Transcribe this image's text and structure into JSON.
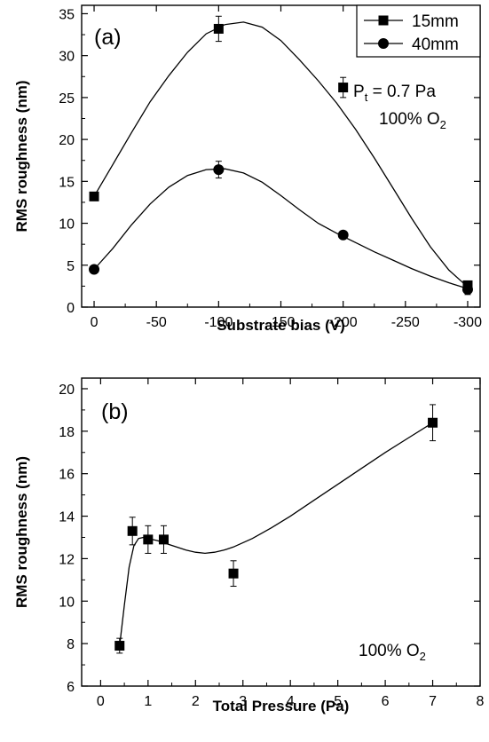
{
  "chart_data": [
    {
      "type": "line",
      "panel_label": "(a)",
      "xlabel": "Substrate bias (V)",
      "ylabel": "RMS roughness (nm)",
      "xlim": [
        10,
        -310
      ],
      "ylim": [
        0,
        36
      ],
      "x_ticks": [
        0,
        -50,
        -100,
        -150,
        -200,
        -250,
        -300
      ],
      "x_tick_labels": [
        "0",
        "-50",
        "-100",
        "-150",
        "-200",
        "-250",
        "-300"
      ],
      "y_ticks": [
        0,
        5,
        10,
        15,
        20,
        25,
        30,
        35
      ],
      "y_tick_labels": [
        "0",
        "5",
        "10",
        "15",
        "20",
        "25",
        "30",
        "35"
      ],
      "grid": false,
      "legend_position": "top-right",
      "annotation": {
        "prefix": "P",
        "subscript": "t",
        "suffix": " = 0.7 Pa",
        "line2_prefix": "100% O",
        "line2_subscript": "2"
      },
      "series": [
        {
          "name": "15mm",
          "marker": "square",
          "x": [
            0,
            -100,
            -200,
            -300
          ],
          "y": [
            13.2,
            33.2,
            26.2,
            2.6
          ],
          "yerr": [
            0.5,
            1.5,
            1.2,
            0.4
          ],
          "fit_x": [
            0,
            -15,
            -30,
            -45,
            -60,
            -75,
            -90,
            -105,
            -120,
            -135,
            -150,
            -165,
            -180,
            -195,
            -210,
            -225,
            -240,
            -255,
            -270,
            -285,
            -300
          ],
          "fit_y": [
            13.2,
            17.0,
            20.8,
            24.5,
            27.6,
            30.4,
            32.6,
            33.7,
            34.0,
            33.4,
            31.8,
            29.5,
            27.0,
            24.3,
            21.2,
            17.8,
            14.2,
            10.6,
            7.2,
            4.4,
            2.4
          ]
        },
        {
          "name": "40mm",
          "marker": "circle",
          "x": [
            0,
            -100,
            -200,
            -300
          ],
          "y": [
            4.5,
            16.4,
            8.6,
            2.1
          ],
          "yerr": [
            0.4,
            1.0,
            0.4,
            0.6
          ],
          "fit_x": [
            0,
            -15,
            -30,
            -45,
            -60,
            -75,
            -90,
            -105,
            -120,
            -135,
            -150,
            -165,
            -180,
            -195,
            -210,
            -225,
            -240,
            -255,
            -270,
            -285,
            -300
          ],
          "fit_y": [
            4.5,
            7.0,
            9.8,
            12.3,
            14.3,
            15.7,
            16.4,
            16.5,
            16.0,
            14.9,
            13.3,
            11.6,
            10.0,
            8.8,
            7.7,
            6.6,
            5.6,
            4.6,
            3.7,
            2.9,
            2.2
          ]
        }
      ]
    },
    {
      "type": "line",
      "panel_label": "(b)",
      "xlabel": "Total Pressure (Pa)",
      "ylabel": "RMS roughness (nm)",
      "xlim": [
        -0.4,
        8
      ],
      "ylim": [
        6,
        20.5
      ],
      "x_ticks": [
        0,
        1,
        2,
        3,
        4,
        5,
        6,
        7,
        8
      ],
      "x_tick_labels": [
        "0",
        "1",
        "2",
        "3",
        "4",
        "5",
        "6",
        "7",
        "8"
      ],
      "y_ticks": [
        6,
        8,
        10,
        12,
        14,
        16,
        18,
        20
      ],
      "y_tick_labels": [
        "6",
        "8",
        "10",
        "12",
        "14",
        "16",
        "18",
        "20"
      ],
      "grid": false,
      "annotation": {
        "prefix": "100% O",
        "subscript": "2"
      },
      "series": [
        {
          "marker": "square",
          "x": [
            0.4,
            0.67,
            1.0,
            1.33,
            2.8,
            7.0
          ],
          "y": [
            7.9,
            13.3,
            12.9,
            12.9,
            11.3,
            18.4
          ],
          "yerr": [
            0.35,
            0.65,
            0.65,
            0.65,
            0.6,
            0.85
          ],
          "fit_x": [
            0.4,
            0.5,
            0.6,
            0.7,
            0.8,
            0.9,
            1.0,
            1.2,
            1.4,
            1.6,
            1.8,
            2.0,
            2.2,
            2.4,
            2.6,
            2.8,
            3.2,
            3.6,
            4.0,
            4.5,
            5.0,
            5.5,
            6.0,
            6.5,
            7.0
          ],
          "fit_y": [
            7.9,
            9.8,
            11.6,
            12.6,
            12.95,
            13.0,
            12.95,
            12.85,
            12.7,
            12.55,
            12.4,
            12.3,
            12.25,
            12.3,
            12.4,
            12.55,
            12.95,
            13.45,
            14.0,
            14.75,
            15.5,
            16.25,
            17.0,
            17.7,
            18.4
          ]
        }
      ]
    }
  ]
}
